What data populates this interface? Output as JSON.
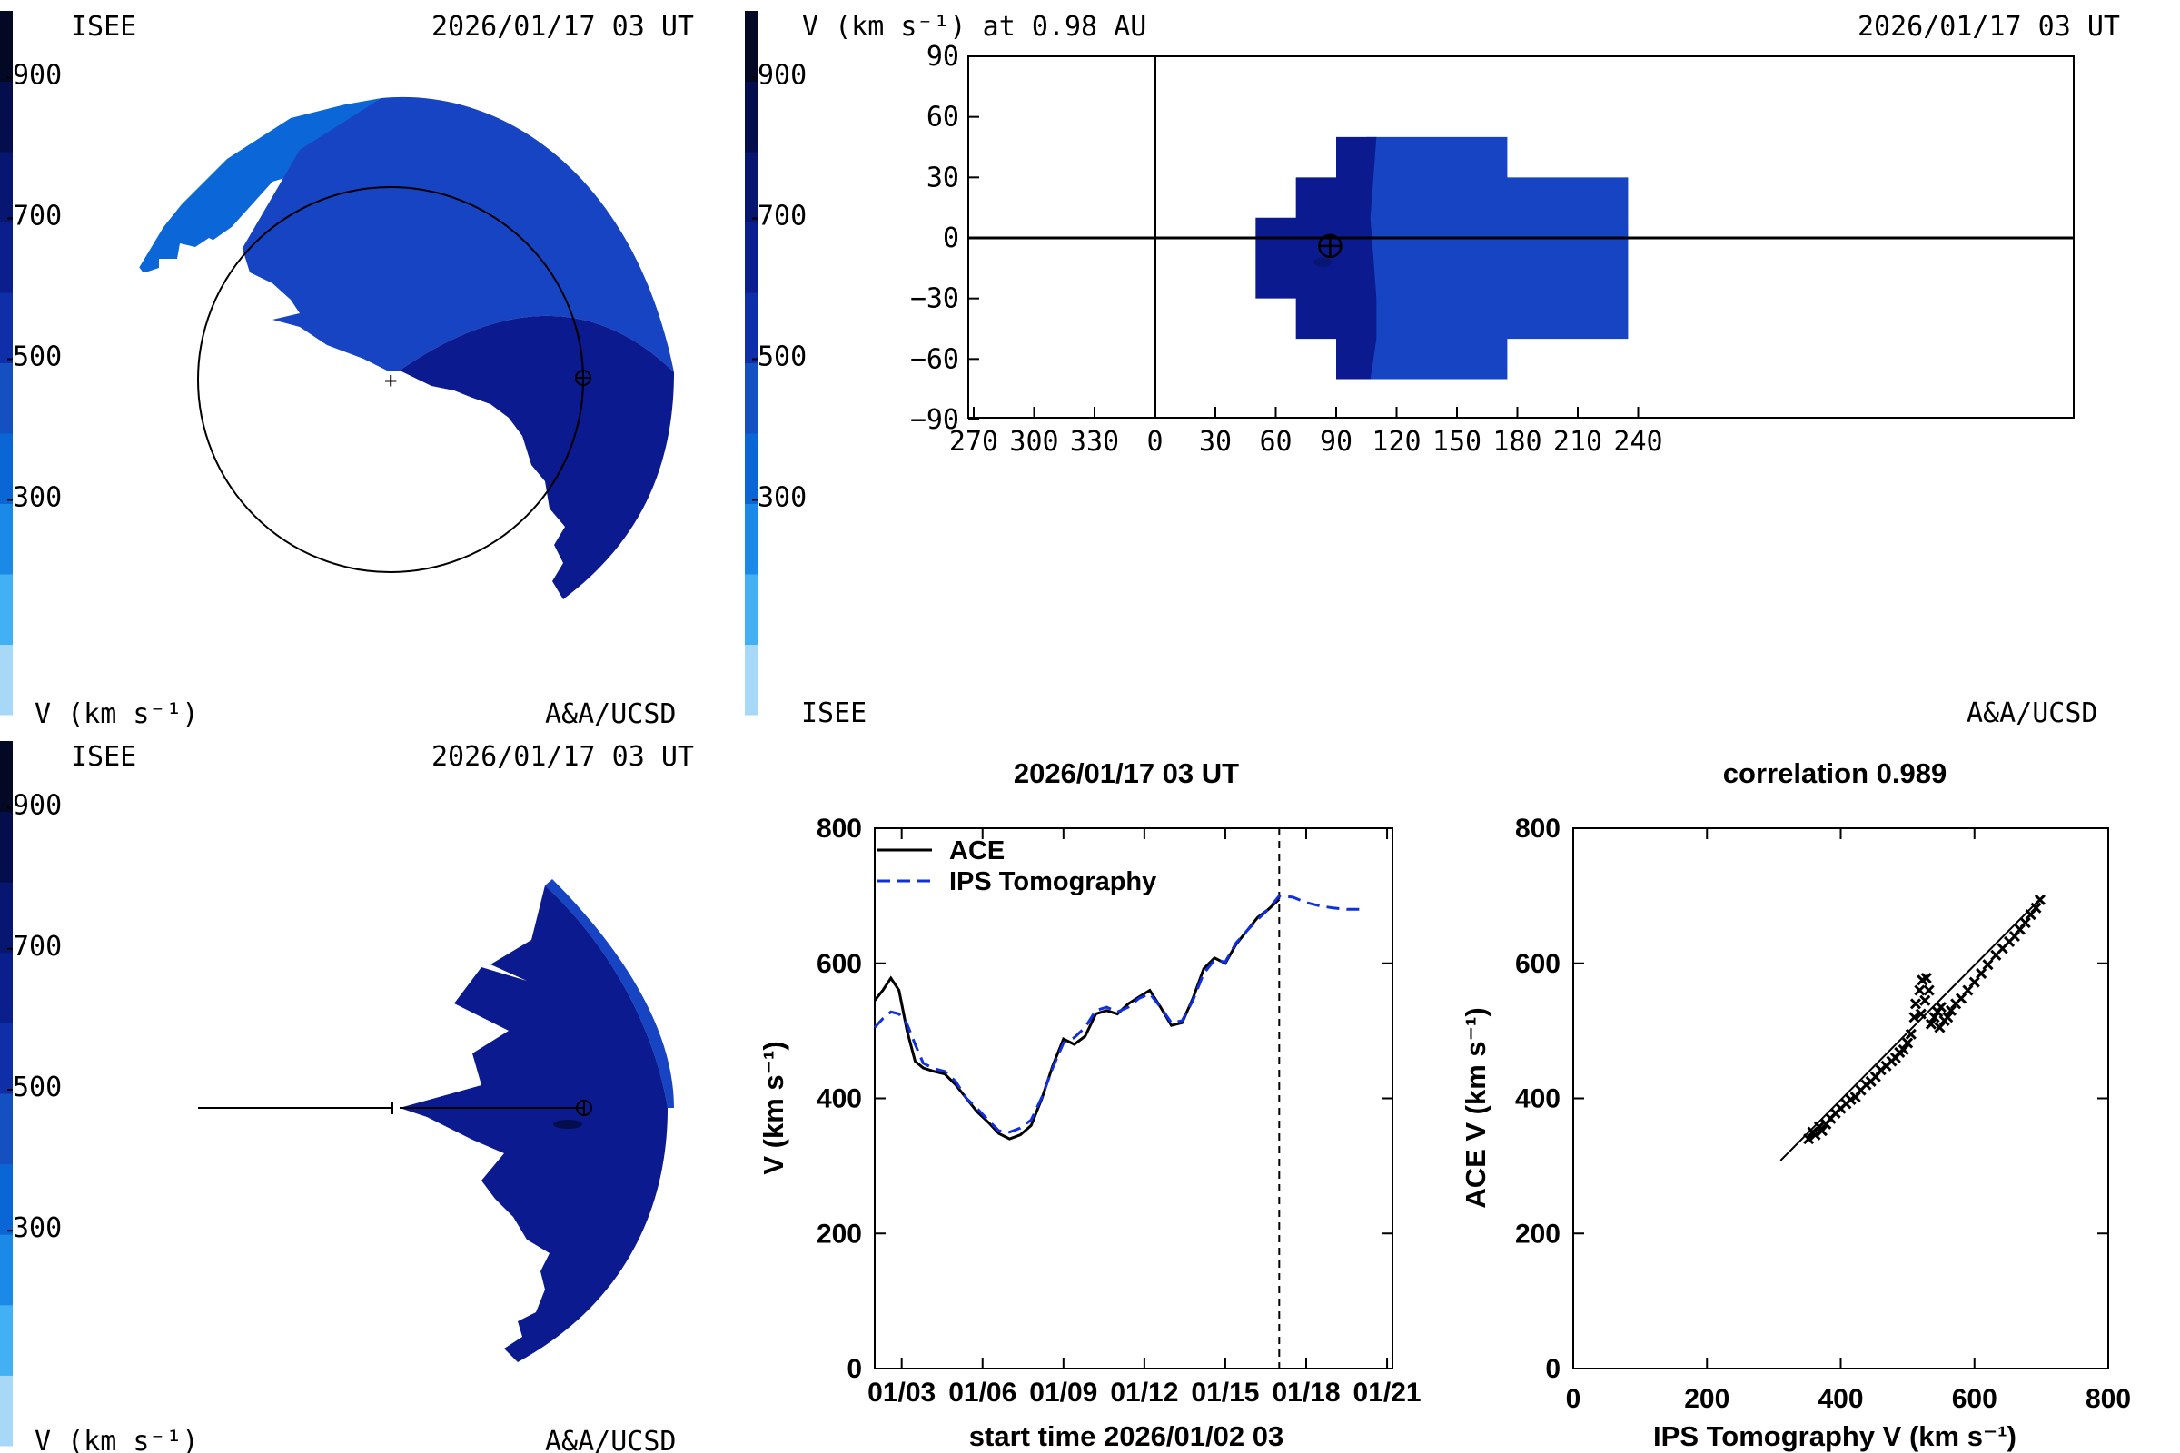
{
  "panels": {
    "top_left": {
      "institution": "ISEE",
      "timestamp": "2026/01/17 03 UT",
      "colorbar_label": "V (km s⁻¹)",
      "credit": "A&A/UCSD"
    },
    "top_right": {
      "title": "V (km s⁻¹) at 0.98 AU",
      "timestamp": "2026/01/17 03 UT",
      "institution": "ISEE",
      "credit": "A&A/UCSD"
    },
    "bottom_left": {
      "institution": "ISEE",
      "timestamp": "2026/01/17 03 UT",
      "colorbar_label": "V (km s⁻¹)",
      "credit": "A&A/UCSD"
    }
  },
  "colorbar": {
    "ticks": [
      "900",
      "700",
      "500",
      "300"
    ],
    "bands": [
      "#a8d8f8",
      "#42b0f2",
      "#1a8ae6",
      "#0a66d4",
      "#1550c0",
      "#0e2fa8",
      "#0a1e8c",
      "#071670",
      "#050e4c",
      "#030824"
    ]
  },
  "colors": {
    "fast": "#0b1a8e",
    "slow": "#1644c2",
    "slower": "#0b66d8"
  },
  "chart_data": [
    {
      "type": "heatmap",
      "x_ticks": [
        "270",
        "300",
        "330",
        "0",
        "30",
        "60",
        "90",
        "120",
        "150",
        "180",
        "210",
        "240"
      ],
      "y_ticks": [
        "90",
        "60",
        "30",
        "0",
        "−30",
        "−60",
        "−90"
      ],
      "earth_marker": {
        "longitude": 87,
        "latitude": -4
      }
    },
    {
      "type": "line",
      "title": "2026/01/17 03 UT",
      "xlabel": "start time 2026/01/02 03",
      "ylabel": "V (km s⁻¹)",
      "x_ticks": [
        "01/03",
        "01/06",
        "01/09",
        "01/12",
        "01/15",
        "01/18",
        "01/21"
      ],
      "y_ticks": [
        "0",
        "200",
        "400",
        "600",
        "800"
      ],
      "ylim": [
        0,
        800
      ],
      "xlim": [
        0,
        19.2
      ],
      "current_time": 15.0,
      "series": [
        {
          "name": "ACE",
          "color": "#000000",
          "dash": "solid",
          "x": [
            0,
            0.3,
            0.6,
            0.9,
            1.2,
            1.5,
            1.8,
            2.2,
            2.6,
            3.0,
            3.4,
            3.8,
            4.2,
            4.6,
            5.0,
            5.4,
            5.8,
            6.2,
            6.6,
            7.0,
            7.4,
            7.8,
            8.2,
            8.6,
            9.0,
            9.4,
            9.8,
            10.2,
            10.6,
            11.0,
            11.4,
            11.8,
            12.2,
            12.6,
            13.0,
            13.4,
            13.8,
            14.2,
            14.6,
            15.0
          ],
          "y": [
            545,
            560,
            578,
            560,
            500,
            455,
            445,
            440,
            436,
            420,
            400,
            380,
            365,
            348,
            340,
            346,
            360,
            400,
            448,
            488,
            480,
            492,
            525,
            530,
            525,
            540,
            550,
            560,
            535,
            508,
            512,
            548,
            592,
            608,
            600,
            628,
            648,
            668,
            680,
            695
          ]
        },
        {
          "name": "IPS Tomography",
          "color": "#1030e0",
          "dash": "dashed",
          "x": [
            0,
            0.3,
            0.6,
            0.9,
            1.2,
            1.5,
            1.8,
            2.2,
            2.6,
            3.0,
            3.4,
            3.8,
            4.2,
            4.6,
            5.0,
            5.4,
            5.8,
            6.2,
            6.6,
            7.0,
            7.4,
            7.8,
            8.2,
            8.6,
            9.0,
            9.4,
            9.8,
            10.2,
            10.6,
            11.0,
            11.4,
            11.8,
            12.2,
            12.6,
            13.0,
            13.4,
            13.8,
            14.2,
            14.6,
            15.0,
            15.5,
            16.0,
            16.5,
            17.0,
            17.5,
            18.0
          ],
          "y": [
            505,
            518,
            528,
            525,
            510,
            480,
            452,
            444,
            440,
            425,
            400,
            385,
            368,
            352,
            350,
            356,
            368,
            402,
            445,
            482,
            490,
            505,
            530,
            535,
            528,
            535,
            548,
            555,
            535,
            512,
            515,
            545,
            585,
            605,
            602,
            630,
            648,
            665,
            680,
            700,
            698,
            690,
            685,
            682,
            680,
            680
          ]
        }
      ]
    },
    {
      "type": "scatter",
      "title": "correlation 0.989",
      "xlabel": "IPS Tomography V (km s⁻¹)",
      "ylabel": "ACE V (km s⁻¹)",
      "x_ticks": [
        "0",
        "200",
        "400",
        "600",
        "800"
      ],
      "y_ticks": [
        "0",
        "200",
        "400",
        "600",
        "800"
      ],
      "xlim": [
        0,
        800
      ],
      "ylim": [
        0,
        800
      ],
      "fit_line": {
        "x": [
          310,
          695
        ],
        "y": [
          308,
          692
        ]
      },
      "points": [
        [
          352,
          340
        ],
        [
          358,
          350
        ],
        [
          362,
          346
        ],
        [
          368,
          358
        ],
        [
          372,
          352
        ],
        [
          378,
          362
        ],
        [
          385,
          370
        ],
        [
          392,
          378
        ],
        [
          400,
          385
        ],
        [
          408,
          392
        ],
        [
          415,
          398
        ],
        [
          422,
          402
        ],
        [
          430,
          412
        ],
        [
          438,
          420
        ],
        [
          445,
          425
        ],
        [
          452,
          432
        ],
        [
          460,
          442
        ],
        [
          468,
          448
        ],
        [
          476,
          455
        ],
        [
          482,
          460
        ],
        [
          488,
          468
        ],
        [
          494,
          472
        ],
        [
          500,
          482
        ],
        [
          505,
          495
        ],
        [
          510,
          520
        ],
        [
          512,
          540
        ],
        [
          518,
          560
        ],
        [
          522,
          575
        ],
        [
          528,
          578
        ],
        [
          532,
          560
        ],
        [
          526,
          545
        ],
        [
          520,
          525
        ],
        [
          535,
          510
        ],
        [
          540,
          520
        ],
        [
          545,
          528
        ],
        [
          550,
          535
        ],
        [
          548,
          505
        ],
        [
          555,
          515
        ],
        [
          560,
          520
        ],
        [
          565,
          530
        ],
        [
          572,
          540
        ],
        [
          580,
          548
        ],
        [
          590,
          560
        ],
        [
          600,
          572
        ],
        [
          610,
          585
        ],
        [
          620,
          598
        ],
        [
          632,
          612
        ],
        [
          642,
          622
        ],
        [
          652,
          632
        ],
        [
          660,
          640
        ],
        [
          668,
          650
        ],
        [
          676,
          660
        ],
        [
          684,
          672
        ],
        [
          692,
          682
        ],
        [
          698,
          694
        ]
      ]
    }
  ]
}
